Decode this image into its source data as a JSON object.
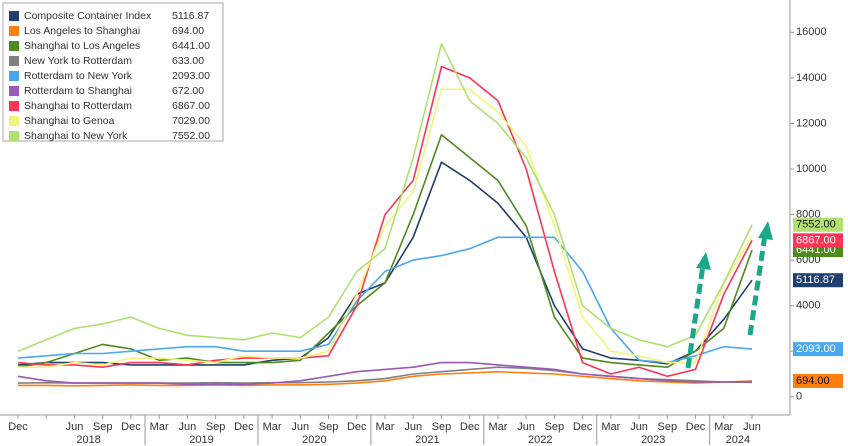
{
  "chart_data": {
    "type": "line",
    "categories": [
      "Dec",
      null,
      "Jun",
      "Sep",
      "Dec",
      "Mar",
      "Jun",
      "Sep",
      "Dec",
      "Mar",
      "Jun",
      "Sep",
      "Dec",
      "Mar",
      "Jun",
      "Sep",
      "Dec",
      "Mar",
      "Jun",
      "Sep",
      "Dec",
      "Mar",
      "Jun",
      "Sep",
      "Dec",
      "Mar",
      "Jun"
    ],
    "year_labels": [
      "2018",
      "2019",
      "2020",
      "2021",
      "2022",
      "2023",
      "2024"
    ],
    "ylim": [
      -800,
      17200
    ],
    "yticks": [
      0,
      2000,
      4000,
      6000,
      8000,
      10000,
      12000,
      14000,
      16000
    ],
    "grid": false,
    "legend": "upper left",
    "series": [
      {
        "name": "Composite Container Index",
        "latest": "5116.87",
        "right_tag": true,
        "color": "#1f3f6e",
        "values": [
          1400,
          1500,
          1500,
          1500,
          1400,
          1400,
          1400,
          1400,
          1400,
          1600,
          1700,
          2600,
          4500,
          5000,
          7000,
          10300,
          9500,
          8500,
          7000,
          4000,
          2100,
          1700,
          1600,
          1450,
          2000,
          3400,
          5116.87
        ]
      },
      {
        "name": "Los Angeles to Shanghai",
        "latest": "694.00",
        "right_tag": true,
        "color": "#ff7f0e",
        "values": [
          500,
          500,
          480,
          500,
          520,
          500,
          500,
          520,
          500,
          520,
          520,
          550,
          600,
          700,
          900,
          1000,
          1050,
          1100,
          1050,
          1000,
          900,
          800,
          700,
          650,
          600,
          650,
          694
        ]
      },
      {
        "name": "Shanghai to Los Angeles",
        "latest": "6441.00",
        "right_tag": true,
        "color": "#4e8a1e",
        "values": [
          1300,
          1500,
          1900,
          2300,
          2100,
          1600,
          1700,
          1500,
          1500,
          1500,
          1600,
          2800,
          4000,
          5000,
          8000,
          11500,
          10500,
          9500,
          7500,
          3500,
          1700,
          1500,
          1400,
          1300,
          2000,
          3000,
          6441
        ]
      },
      {
        "name": "New York to Rotterdam",
        "latest": "633.00",
        "right_tag": false,
        "color": "#808080",
        "values": [
          600,
          620,
          600,
          600,
          600,
          600,
          600,
          620,
          600,
          620,
          620,
          650,
          700,
          800,
          1000,
          1100,
          1200,
          1300,
          1250,
          1150,
          1000,
          900,
          800,
          750,
          700,
          650,
          633
        ]
      },
      {
        "name": "Rotterdam to New York",
        "latest": "2093.00",
        "right_tag": true,
        "color": "#4aa8f0",
        "values": [
          1700,
          1800,
          1900,
          1900,
          2000,
          2100,
          2200,
          2200,
          2000,
          2000,
          2000,
          2300,
          4200,
          5500,
          6000,
          6200,
          6500,
          7000,
          7000,
          7000,
          5500,
          3000,
          1600,
          1500,
          1800,
          2200,
          2093
        ]
      },
      {
        "name": "Rotterdam to Shanghai",
        "latest": "672.00",
        "right_tag": false,
        "color": "#9b59b6",
        "values": [
          900,
          700,
          600,
          600,
          600,
          600,
          550,
          550,
          550,
          600,
          700,
          900,
          1100,
          1200,
          1300,
          1500,
          1500,
          1400,
          1300,
          1200,
          1000,
          900,
          800,
          700,
          650,
          650,
          672
        ]
      },
      {
        "name": "Shanghai to Rotterdam",
        "latest": "6867.00",
        "right_tag": true,
        "color": "#ff3355",
        "values": [
          1500,
          1400,
          1400,
          1300,
          1500,
          1500,
          1400,
          1600,
          1700,
          1700,
          1700,
          1800,
          4000,
          8000,
          9500,
          14500,
          14000,
          13000,
          10000,
          5500,
          1500,
          1000,
          1300,
          900,
          1200,
          4500,
          6867
        ]
      },
      {
        "name": "Shanghai to Genoa",
        "latest": "7029.00",
        "right_tag": false,
        "color": "#f4f47a",
        "values": [
          1300,
          1300,
          1500,
          1400,
          1700,
          1700,
          1600,
          1500,
          1800,
          1700,
          1700,
          2000,
          4500,
          7500,
          9000,
          13500,
          13500,
          12500,
          11000,
          7500,
          3500,
          2000,
          1800,
          1500,
          1500,
          5000,
          7029
        ]
      },
      {
        "name": "Shanghai to New York",
        "latest": "7552.00",
        "right_tag": true,
        "color": "#b0e070",
        "values": [
          2000,
          2500,
          3000,
          3200,
          3500,
          3000,
          2700,
          2600,
          2500,
          2800,
          2600,
          3500,
          5500,
          6500,
          10500,
          15500,
          13000,
          12000,
          10500,
          8000,
          4000,
          3000,
          2500,
          2200,
          2700,
          5000,
          7552
        ]
      }
    ]
  }
}
